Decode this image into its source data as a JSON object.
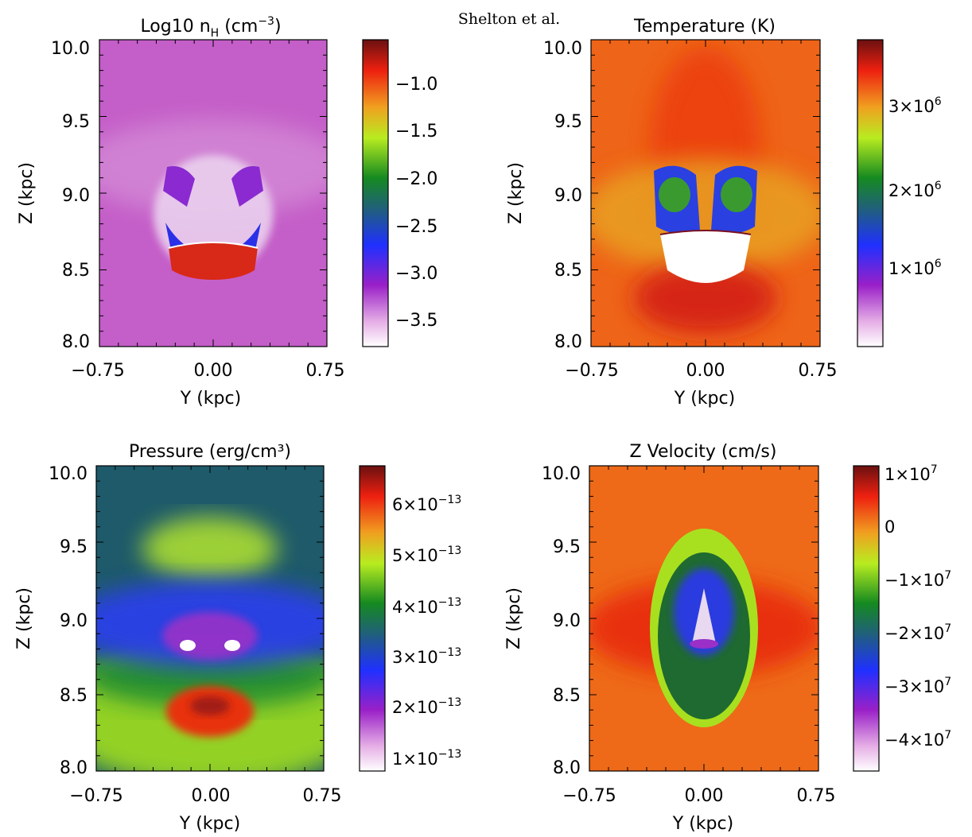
{
  "header": "Shelton et al.",
  "chart_data": [
    {
      "type": "heatmap",
      "id": "density",
      "title": "Log10 n",
      "title_sub": "H",
      "title_unit": "(cm",
      "title_sup": "−3",
      "title_end": ")",
      "xlabel": "Y (kpc)",
      "ylabel": "Z (kpc)",
      "xlim": [
        -0.75,
        0.75
      ],
      "ylim": [
        8.0,
        10.0
      ],
      "xticks": [
        "−0.75",
        "0.00",
        "0.75"
      ],
      "yticks": [
        "8.0",
        "8.5",
        "9.0",
        "9.5",
        "10.0"
      ],
      "colormap": "white-purple-blue-green-yellow-red-darkred",
      "background_color": "#c45ec8",
      "colorbar": {
        "range": [
          -3.85,
          -0.6
        ],
        "ticks": [
          "−1.0",
          "−1.5",
          "−2.0",
          "−2.5",
          "−3.0",
          "−3.5"
        ],
        "values": [
          -1.0,
          -1.5,
          -2.0,
          -2.5,
          -3.0,
          -3.5
        ]
      }
    },
    {
      "type": "heatmap",
      "id": "temperature",
      "title": "Temperature (K)",
      "xlabel": "Y (kpc)",
      "ylabel": "Z (kpc)",
      "xlim": [
        -0.75,
        0.75
      ],
      "ylim": [
        8.0,
        10.0
      ],
      "xticks": [
        "−0.75",
        "0.00",
        "0.75"
      ],
      "yticks": [
        "8.0",
        "8.5",
        "9.0",
        "9.5",
        "10.0"
      ],
      "colormap": "white-purple-blue-green-yellow-red-darkred",
      "background_color": "#ee6418",
      "colorbar": {
        "range": [
          200000,
          3800000
        ],
        "ticks": [
          "3×10",
          "2×10",
          "1×10"
        ],
        "ticks_sup": [
          "6",
          "6",
          "6"
        ],
        "values": [
          3000000,
          2000000,
          1000000
        ]
      }
    },
    {
      "type": "heatmap",
      "id": "pressure",
      "title": "Pressure (erg/cm³)",
      "xlabel": "Y (kpc)",
      "ylabel": "Z (kpc)",
      "xlim": [
        -0.75,
        0.75
      ],
      "ylim": [
        8.0,
        10.0
      ],
      "xticks": [
        "−0.75",
        "0.00",
        "0.75"
      ],
      "yticks": [
        "8.0",
        "8.5",
        "9.0",
        "9.5",
        "10.0"
      ],
      "colormap": "white-purple-blue-green-yellow-red-darkred",
      "background_color": "#1e5a6a",
      "colorbar": {
        "range": [
          9e-14,
          6.6e-13
        ],
        "ticks": [
          "6×10",
          "5×10",
          "4×10",
          "3×10",
          "2×10",
          "1×10"
        ],
        "ticks_sup": [
          "−13",
          "−13",
          "−13",
          "−13",
          "−13",
          "−13"
        ],
        "values": [
          6e-13,
          5e-13,
          4e-13,
          3e-13,
          2e-13,
          1e-13
        ]
      }
    },
    {
      "type": "heatmap",
      "id": "zvelocity",
      "title": "Z Velocity (cm/s)",
      "xlabel": "Y (kpc)",
      "ylabel": "Z (kpc)",
      "xlim": [
        -0.75,
        0.75
      ],
      "ylim": [
        8.0,
        10.0
      ],
      "xticks": [
        "−0.75",
        "0.00",
        "0.75"
      ],
      "yticks": [
        "8.0",
        "8.5",
        "9.0",
        "9.5",
        "10.0"
      ],
      "colormap": "white-purple-blue-green-yellow-red-darkred",
      "background_color": "#ee6a18",
      "colorbar": {
        "range": [
          -47000000,
          10000000
        ],
        "ticks": [
          "1×10",
          "0",
          "−1×10",
          "−2×10",
          "−3×10",
          "−4×10"
        ],
        "ticks_sup": [
          "7",
          "",
          "7",
          "7",
          "7",
          "7"
        ],
        "values": [
          10000000,
          0,
          -10000000,
          -20000000,
          -30000000,
          -40000000
        ]
      }
    }
  ]
}
